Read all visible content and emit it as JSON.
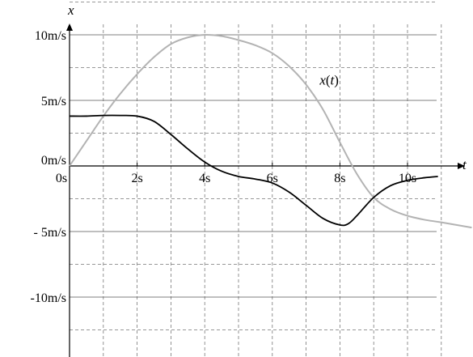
{
  "chart_data": {
    "type": "line",
    "title": "",
    "xlabel": "t",
    "ylabel": "x",
    "xlim": [
      0,
      11.5
    ],
    "ylim": [
      -15,
      13
    ],
    "grid": true,
    "x_ticks": [
      {
        "value": 0,
        "label": "0s"
      },
      {
        "value": 2,
        "label": "2s"
      },
      {
        "value": 4,
        "label": "4s"
      },
      {
        "value": 6,
        "label": "6s"
      },
      {
        "value": 8,
        "label": "8s"
      },
      {
        "value": 10,
        "label": "10s"
      }
    ],
    "y_ticks": [
      {
        "value": 10,
        "label": "10m/s"
      },
      {
        "value": 5,
        "label": "5m/s"
      },
      {
        "value": 0,
        "label": "0m/s"
      },
      {
        "value": -5,
        "label": "- 5m/s"
      },
      {
        "value": -10,
        "label": "-10m/s"
      }
    ],
    "annotations": [
      {
        "text": "x(t)",
        "x": 7.4,
        "y": 6.2
      }
    ],
    "series": [
      {
        "color": "#b3b3b3",
        "label_annotation": "x(t)",
        "points": [
          [
            0,
            0
          ],
          [
            0.5,
            1.9
          ],
          [
            1,
            3.8
          ],
          [
            1.5,
            5.5
          ],
          [
            2,
            7.0
          ],
          [
            2.5,
            8.3
          ],
          [
            3,
            9.3
          ],
          [
            3.5,
            9.8
          ],
          [
            4,
            10.0
          ],
          [
            4.5,
            9.9
          ],
          [
            5,
            9.6
          ],
          [
            5.5,
            9.2
          ],
          [
            6,
            8.6
          ],
          [
            6.5,
            7.6
          ],
          [
            7,
            6.2
          ],
          [
            7.5,
            4.3
          ],
          [
            8,
            1.8
          ],
          [
            8.5,
            -0.6
          ],
          [
            9,
            -2.4
          ],
          [
            9.5,
            -3.3
          ],
          [
            10,
            -3.8
          ],
          [
            10.5,
            -4.1
          ],
          [
            11,
            -4.3
          ],
          [
            11.9,
            -4.7
          ]
        ]
      },
      {
        "color": "#000000",
        "points": [
          [
            0,
            3.8
          ],
          [
            0.5,
            3.8
          ],
          [
            1,
            3.85
          ],
          [
            1.5,
            3.85
          ],
          [
            2,
            3.8
          ],
          [
            2.5,
            3.4
          ],
          [
            3,
            2.4
          ],
          [
            3.5,
            1.3
          ],
          [
            4,
            0.3
          ],
          [
            4.5,
            -0.4
          ],
          [
            5,
            -0.8
          ],
          [
            5.5,
            -1.0
          ],
          [
            6,
            -1.3
          ],
          [
            6.5,
            -2.0
          ],
          [
            7,
            -3.0
          ],
          [
            7.5,
            -4.0
          ],
          [
            8,
            -4.5
          ],
          [
            8.25,
            -4.4
          ],
          [
            8.5,
            -3.8
          ],
          [
            9,
            -2.4
          ],
          [
            9.5,
            -1.5
          ],
          [
            10,
            -1.1
          ],
          [
            10.5,
            -0.9
          ],
          [
            10.9,
            -0.8
          ]
        ]
      }
    ]
  }
}
